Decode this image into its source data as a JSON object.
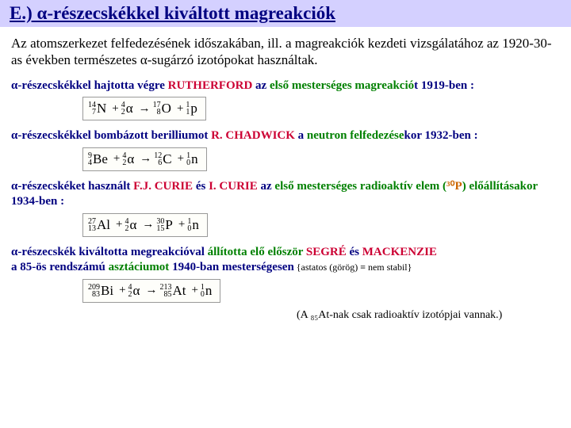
{
  "title": "E.) α-részecskékkel kiváltott magreakciók",
  "intro": "Az atomszerkezet felfedezésének időszakában, ill. a magreakciók kezdeti vizsgálatához az 1920-30-as években természetes α-sugárzó izotópokat használtak.",
  "s1": {
    "pre": "α-részecskékkel hajtotta végre ",
    "name": "RUTHERFORD",
    "mid": " az ",
    "green": "első mesterséges magreakció",
    "post": "t 1919-ben :"
  },
  "eq1": [
    {
      "m": "14",
      "z": "7",
      "s": "N"
    },
    {
      "op": "+"
    },
    {
      "m": "4",
      "z": "2",
      "s": "α"
    },
    {
      "op": "→"
    },
    {
      "m": "17",
      "z": "8",
      "s": "O"
    },
    {
      "op": "+"
    },
    {
      "m": "1",
      "z": "1",
      "s": "p"
    }
  ],
  "s2": {
    "pre": "α-részecskékkel bombázott berilliumot ",
    "name": "R. CHADWICK",
    "mid": " a ",
    "green": "neutron felfedezése",
    "post": "kor 1932-ben :"
  },
  "eq2": [
    {
      "m": "9",
      "z": "4",
      "s": "Be"
    },
    {
      "op": "+"
    },
    {
      "m": "4",
      "z": "2",
      "s": "α"
    },
    {
      "op": "→"
    },
    {
      "m": "12",
      "z": "6",
      "s": "C"
    },
    {
      "op": "+"
    },
    {
      "m": "1",
      "z": "0",
      "s": "n"
    }
  ],
  "s3": {
    "pre": "α-részecskéket használt ",
    "name1": "F.J. CURIE",
    "and": " és ",
    "name2": "I. CURIE",
    "mid": " az ",
    "green1": "első mesterséges radioaktív elem (",
    "orange": "³⁰P",
    "green2": ")  előállításakor",
    "post": " 1934-ben :"
  },
  "eq3": [
    {
      "m": "27",
      "z": "13",
      "s": "Al"
    },
    {
      "op": "+"
    },
    {
      "m": "4",
      "z": "2",
      "s": "α"
    },
    {
      "op": "→"
    },
    {
      "m": "30",
      "z": "15",
      "s": "P"
    },
    {
      "op": "+"
    },
    {
      "m": "1",
      "z": "0",
      "s": "n"
    }
  ],
  "s4": {
    "pre": "α-részecskék kiváltotta megreakcióval ",
    "green": "állította elő először",
    "mid": " ",
    "name1": "SEGRÉ",
    "and": " és ",
    "name2": "MACKENZIE",
    "line2a": " a 85-ös rendszámú ",
    "green2": "asztáciumot",
    "line2b": " 1940-ban mesterségesen",
    "note": " {astatos (görög) ≡ nem stabil}"
  },
  "eq4": [
    {
      "m": "209",
      "z": "83",
      "s": "Bi"
    },
    {
      "op": "+"
    },
    {
      "m": "4",
      "z": "2",
      "s": "α"
    },
    {
      "op": "→"
    },
    {
      "m": "213",
      "z": "85",
      "s": "At"
    },
    {
      "op": "+"
    },
    {
      "m": "1",
      "z": "0",
      "s": "n"
    }
  ],
  "footnote": "(A ₈₅At-nak  csak radioaktív izotópjai vannak.)"
}
